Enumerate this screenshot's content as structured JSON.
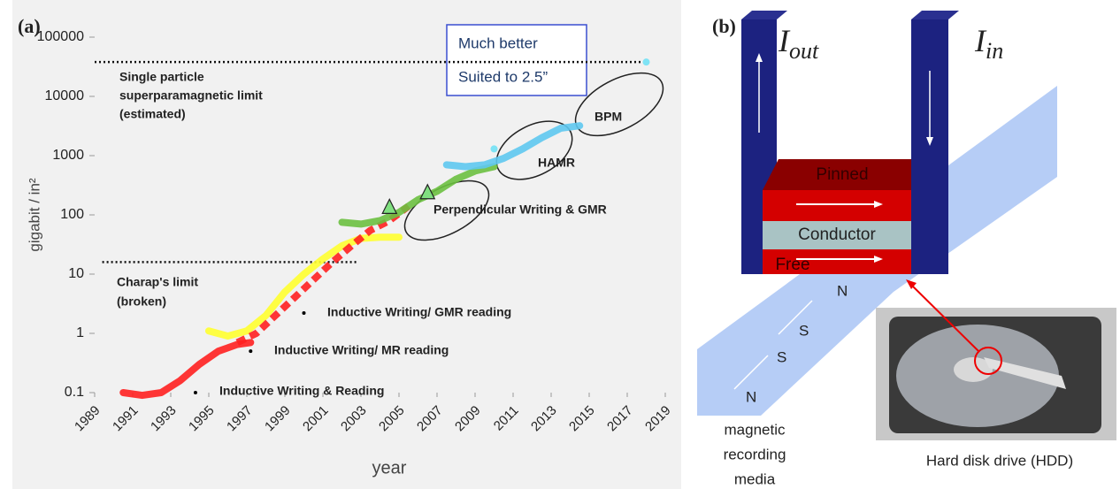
{
  "chart_data": {
    "type": "line",
    "panel_label": "(a)",
    "xlabel": "year",
    "ylabel": "gigabit / in²",
    "xlim": [
      1989,
      2019
    ],
    "ylim": [
      0.1,
      100000
    ],
    "log_y": true,
    "xticks": [
      1989,
      1991,
      1993,
      1995,
      1997,
      1999,
      2001,
      2003,
      2005,
      2007,
      2009,
      2011,
      2013,
      2015,
      2017,
      2019
    ],
    "yticks": [
      0.1,
      1,
      10,
      100,
      1000,
      10000,
      100000
    ],
    "series": [
      {
        "color": "#ff2020",
        "style": "solid",
        "x": [
          1990.5,
          1991.5,
          1992.5,
          1993.5,
          1994.5,
          1995.5,
          1996.5,
          1997.2
        ],
        "values": [
          0.1,
          0.09,
          0.1,
          0.16,
          0.3,
          0.5,
          0.65,
          0.7
        ]
      },
      {
        "color": "#ffff30",
        "style": "solid",
        "x": [
          1995,
          1996,
          1997,
          1998,
          1999,
          2000,
          2001,
          2002,
          2003,
          2004,
          2005
        ],
        "values": [
          1.1,
          0.9,
          1.1,
          2,
          5,
          10,
          18,
          30,
          40,
          42,
          42
        ]
      },
      {
        "color": "#ff2020",
        "style": "dashed",
        "x": [
          1996.5,
          1997.5,
          1998.5,
          1999.5,
          2000.5,
          2001.5,
          2002.5,
          2003.5,
          2004.5,
          2005.5
        ],
        "values": [
          0.7,
          1,
          2,
          4,
          8,
          16,
          30,
          55,
          80,
          140
        ]
      },
      {
        "color": "#6cc040",
        "style": "solid",
        "x": [
          2002,
          2003,
          2004,
          2005,
          2006,
          2007,
          2008,
          2009,
          2010
        ],
        "values": [
          75,
          70,
          80,
          110,
          180,
          250,
          400,
          550,
          650
        ]
      },
      {
        "color": "#5ec8f0",
        "style": "solid",
        "x": [
          2007.5,
          2008.5,
          2009.5,
          2010.5,
          2011.5,
          2012.5,
          2013.5,
          2014.5
        ],
        "values": [
          700,
          650,
          700,
          900,
          1300,
          2000,
          2900,
          3200
        ]
      }
    ],
    "markers": [
      {
        "shape": "triangle",
        "color": "#80e080",
        "x": [
          2004.5,
          2006.5
        ],
        "values": [
          130,
          230
        ]
      },
      {
        "shape": "dot",
        "color": "#7fe3f5",
        "x": [
          2010,
          2018
        ],
        "values": [
          1300,
          38000
        ]
      },
      {
        "shape": "dot",
        "color": "#000000",
        "x": [
          1994.3,
          1997.2,
          2000
        ],
        "values": [
          0.1,
          0.5,
          2.2
        ]
      }
    ],
    "limits": [
      {
        "lines": [
          "Single particle",
          "superparamagnetic limit",
          "(estimated)"
        ],
        "value": 38000,
        "xrange": [
          1989,
          2018
        ]
      },
      {
        "lines": [
          "Charap's limit",
          "(broken)"
        ],
        "value": 16,
        "xrange": [
          1989.4,
          2002.8
        ]
      }
    ],
    "annotations": [
      "Inductive Writing & Reading",
      "Inductive Writing/ MR reading",
      "Inductive Writing/ GMR reading",
      "Perpendicular Writing & GMR",
      "HAMR",
      "BPM"
    ],
    "callout": [
      "Much better",
      "Suited to 2.5”"
    ]
  },
  "diagram": {
    "panel_label": "(b)",
    "currents": [
      {
        "symbol": "I",
        "subscript": "out"
      },
      {
        "symbol": "I",
        "subscript": "in"
      }
    ],
    "layers": [
      "Pinned",
      "Conductor",
      "Free"
    ],
    "poles": [
      "N",
      "S",
      "S",
      "N"
    ],
    "media_label": [
      "magnetic",
      "recording",
      "media"
    ],
    "photo_caption": "Hard disk drive (HDD)"
  }
}
